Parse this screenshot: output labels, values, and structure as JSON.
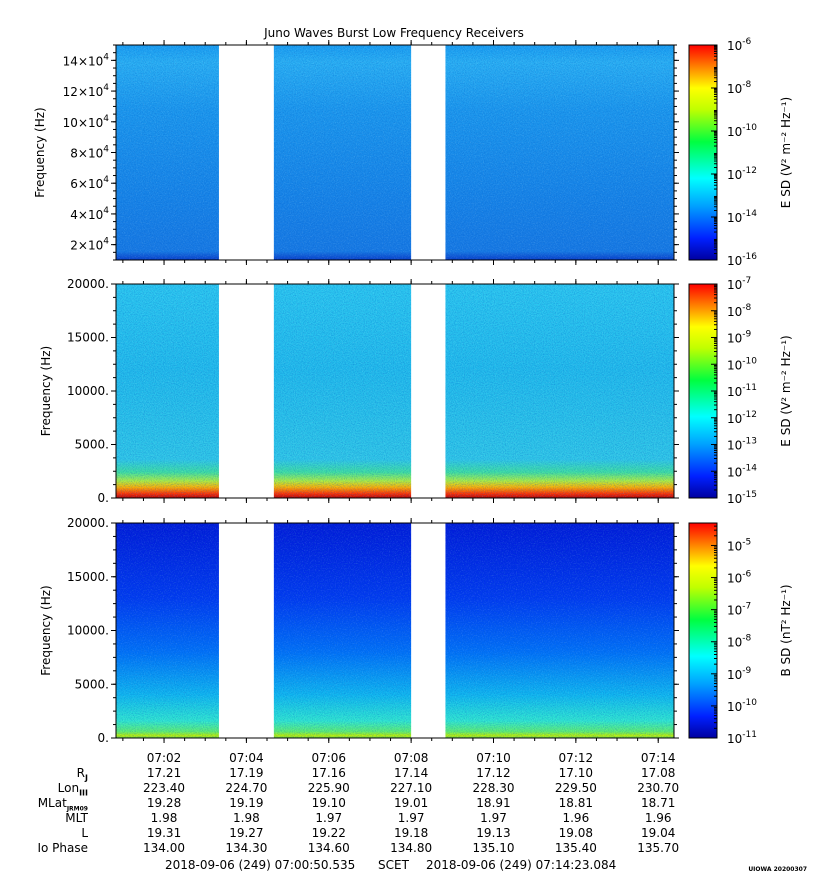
{
  "title": "Juno Waves Burst Low Frequency Receivers",
  "chart_data": [
    {
      "type": "heatmap",
      "panel": "e-high",
      "ylabel": "Frequency (Hz)",
      "ylim": [
        10000,
        150000
      ],
      "yticks": [
        {
          "value": 20000,
          "mant": "2×10",
          "exp": "4"
        },
        {
          "value": 40000,
          "mant": "4×10",
          "exp": "4"
        },
        {
          "value": 60000,
          "mant": "6×10",
          "exp": "4"
        },
        {
          "value": 80000,
          "mant": "8×10",
          "exp": "4"
        },
        {
          "value": 100000,
          "mant": "10×10",
          "exp": "4"
        },
        {
          "value": 120000,
          "mant": "12×10",
          "exp": "4"
        },
        {
          "value": 140000,
          "mant": "14×10",
          "exp": "4"
        }
      ],
      "colorbar": {
        "label": "E SD (V² m⁻² Hz⁻¹)",
        "log_range": [
          -16,
          -6
        ],
        "ticks": [
          {
            "exp": "-6"
          },
          {
            "exp": "-8"
          },
          {
            "exp": "-10"
          },
          {
            "exp": "-12"
          },
          {
            "exp": "-14"
          },
          {
            "exp": "-16"
          }
        ]
      }
    },
    {
      "type": "heatmap",
      "panel": "e-low",
      "ylabel": "Frequency (Hz)",
      "ylim": [
        0,
        20000
      ],
      "yticks": [
        {
          "value": 0,
          "label": "0."
        },
        {
          "value": 5000,
          "label": "5000."
        },
        {
          "value": 10000,
          "label": "10000."
        },
        {
          "value": 15000,
          "label": "15000."
        },
        {
          "value": 20000,
          "label": "20000."
        }
      ],
      "colorbar": {
        "label": "E SD (V² m⁻² Hz⁻¹)",
        "log_range": [
          -15,
          -7
        ],
        "ticks": [
          {
            "exp": "-7"
          },
          {
            "exp": "-8"
          },
          {
            "exp": "-9"
          },
          {
            "exp": "-10"
          },
          {
            "exp": "-11"
          },
          {
            "exp": "-12"
          },
          {
            "exp": "-13"
          },
          {
            "exp": "-14"
          },
          {
            "exp": "-15"
          }
        ]
      }
    },
    {
      "type": "heatmap",
      "panel": "b-low",
      "ylabel": "Frequency (Hz)",
      "ylim": [
        0,
        20000
      ],
      "yticks": [
        {
          "value": 0,
          "label": "0."
        },
        {
          "value": 5000,
          "label": "5000."
        },
        {
          "value": 10000,
          "label": "10000."
        },
        {
          "value": 15000,
          "label": "15000."
        },
        {
          "value": 20000,
          "label": "20000."
        }
      ],
      "colorbar": {
        "label": "B SD (nT² Hz⁻¹)",
        "log_range": [
          -11,
          -4.3
        ],
        "ticks": [
          {
            "exp": "-5"
          },
          {
            "exp": "-6"
          },
          {
            "exp": "-7"
          },
          {
            "exp": "-8"
          },
          {
            "exp": "-9"
          },
          {
            "exp": "-10"
          },
          {
            "exp": "-11"
          }
        ]
      }
    }
  ],
  "time_axis": {
    "start": "07:00:50",
    "end": "07:14:23",
    "ticks": [
      "07:02",
      "07:04",
      "07:06",
      "07:08",
      "07:10",
      "07:12",
      "07:14"
    ],
    "data_gaps": [
      [
        "07:03:20",
        "07:04:40"
      ],
      [
        "07:08:00",
        "07:08:50"
      ]
    ]
  },
  "ephemeris": [
    {
      "label": "R",
      "sub": "J",
      "values": [
        "17.21",
        "17.19",
        "17.16",
        "17.14",
        "17.12",
        "17.10",
        "17.08"
      ]
    },
    {
      "label": "Lon",
      "sub": "III",
      "values": [
        "223.40",
        "224.70",
        "225.90",
        "227.10",
        "228.30",
        "229.50",
        "230.70"
      ]
    },
    {
      "label": "MLat",
      "sub": "JRM09",
      "values": [
        "19.28",
        "19.19",
        "19.10",
        "19.01",
        "18.91",
        "18.81",
        "18.71"
      ]
    },
    {
      "label": "MLT",
      "sub": "",
      "values": [
        "1.98",
        "1.98",
        "1.97",
        "1.97",
        "1.97",
        "1.96",
        "1.96"
      ]
    },
    {
      "label": "L",
      "sub": "",
      "values": [
        "19.31",
        "19.27",
        "19.22",
        "19.18",
        "19.13",
        "19.08",
        "19.04"
      ]
    },
    {
      "label": "Io Phase",
      "sub": "",
      "values": [
        "134.00",
        "134.30",
        "134.60",
        "134.80",
        "135.10",
        "135.40",
        "135.70"
      ]
    }
  ],
  "footer": {
    "start": "2018-09-06 (249) 07:00:50.535",
    "scet": "SCET",
    "end": "2018-09-06 (249) 07:14:23.084"
  },
  "stamp": "UIOWA 20200307",
  "colors": {
    "background": "#ffffff",
    "axis": "#000000"
  }
}
